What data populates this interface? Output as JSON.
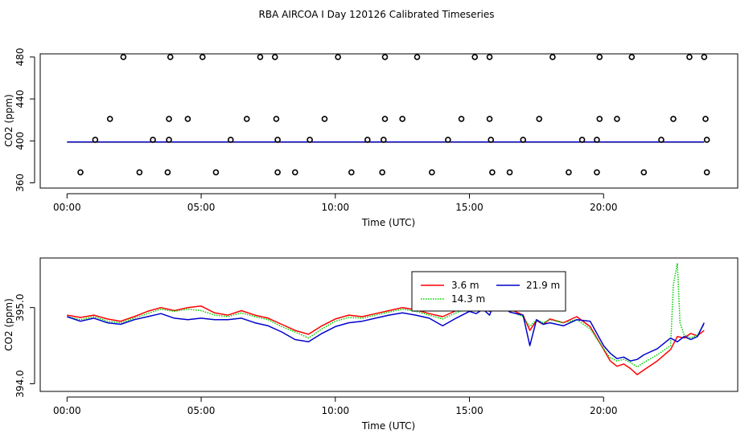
{
  "title": "RBA AIRCOA I  Day 120126  Calibrated Timeseries",
  "colors": {
    "red": "#ff0000",
    "green": "#00cc00",
    "blue": "#0000cc",
    "flag": "#000000"
  },
  "chart_data": [
    {
      "type": "scatter",
      "xlabel": "Time (UTC)",
      "ylabel": "CO2 (ppm)",
      "xlim": [
        -1,
        25
      ],
      "ylim": [
        355,
        483
      ],
      "x_tick_values": [
        0,
        5,
        10,
        15,
        20
      ],
      "x_tick_labels": [
        "00:00",
        "05:00",
        "10:00",
        "15:00",
        "20:00"
      ],
      "y_tick_values": [
        360,
        400,
        440,
        480
      ],
      "y_tick_labels": [
        "360",
        "400",
        "440",
        "480"
      ],
      "grid": false,
      "flag_points": {
        "x": [
          2.1,
          3.85,
          5.05,
          7.2,
          7.75,
          10.1,
          11.85,
          13.05,
          15.2,
          15.75,
          18.1,
          19.85,
          21.05,
          23.2,
          23.75,
          1.6,
          3.8,
          4.5,
          6.7,
          7.8,
          9.6,
          11.85,
          12.5,
          14.7,
          15.75,
          17.6,
          19.85,
          20.5,
          22.6,
          23.8,
          1.05,
          3.2,
          3.8,
          6.1,
          7.85,
          9.05,
          11.2,
          11.8,
          14.2,
          15.8,
          17.0,
          19.2,
          19.75,
          22.15,
          23.85,
          0.5,
          2.7,
          3.75,
          5.55,
          7.85,
          8.5,
          10.6,
          11.75,
          13.6,
          15.85,
          16.5,
          18.7,
          19.75,
          21.5,
          23.85
        ],
        "y": [
          480,
          480,
          480,
          480,
          480,
          480,
          480,
          480,
          480,
          480,
          480,
          480,
          480,
          480,
          480,
          421,
          421,
          421,
          421,
          421,
          421,
          421,
          421,
          421,
          421,
          421,
          421,
          421,
          421,
          421,
          401,
          401,
          401,
          401,
          401,
          401,
          401,
          401,
          401,
          401,
          401,
          401,
          401,
          401,
          401,
          370,
          370,
          370,
          370,
          370,
          370,
          370,
          370,
          370,
          370,
          370,
          370,
          370,
          370,
          370
        ]
      },
      "series": [
        {
          "values_constant": 398.8,
          "x_range": [
            0,
            23.75
          ]
        },
        {
          "values_constant": 398.9,
          "x_range": [
            0,
            23.75
          ]
        },
        {
          "values_constant": 399.0,
          "x_range": [
            0,
            23.75
          ]
        }
      ]
    },
    {
      "type": "line",
      "xlabel": "Time (UTC)",
      "ylabel": "CO2 (ppm)",
      "xlim": [
        -1,
        25
      ],
      "ylim": [
        393.9,
        395.65
      ],
      "x_tick_values": [
        0,
        5,
        10,
        15,
        20
      ],
      "x_tick_labels": [
        "00:00",
        "05:00",
        "10:00",
        "15:00",
        "20:00"
      ],
      "y_tick_values": [
        394.0,
        395.0
      ],
      "y_tick_labels": [
        "394.0",
        "395.0"
      ],
      "grid": false,
      "legend_position": "top-center",
      "series": [
        {
          "name": "3.6 m",
          "color": "#ff0000",
          "x": [
            0,
            0.5,
            1,
            1.5,
            2,
            2.5,
            3,
            3.5,
            4,
            4.5,
            5,
            5.5,
            6,
            6.5,
            7,
            7.5,
            8,
            8.5,
            9,
            9.5,
            10,
            10.5,
            11,
            11.5,
            12,
            12.5,
            13,
            13.5,
            14,
            14.5,
            15,
            15.25,
            15.5,
            15.75,
            16,
            16.5,
            17,
            17.25,
            17.5,
            17.75,
            18,
            18.5,
            19,
            19.5,
            20,
            20.25,
            20.5,
            20.75,
            21,
            21.25,
            21.5,
            22,
            22.5,
            22.75,
            23,
            23.25,
            23.5,
            23.75
          ],
          "values": [
            394.9,
            394.87,
            394.9,
            394.85,
            394.82,
            394.88,
            394.95,
            395.0,
            394.96,
            395.0,
            395.02,
            394.93,
            394.9,
            394.96,
            394.9,
            394.86,
            394.78,
            394.7,
            394.65,
            394.76,
            394.85,
            394.9,
            394.88,
            394.92,
            394.96,
            395.0,
            394.97,
            394.92,
            394.88,
            394.96,
            395.05,
            395.1,
            394.98,
            394.95,
            395.05,
            394.98,
            394.9,
            394.7,
            394.83,
            394.78,
            394.85,
            394.8,
            394.88,
            394.75,
            394.45,
            394.3,
            394.23,
            394.26,
            394.2,
            394.12,
            394.18,
            394.3,
            394.45,
            394.62,
            394.6,
            394.66,
            394.63,
            394.7
          ]
        },
        {
          "name": "14.3 m",
          "color": "#00cc00",
          "x": [
            0,
            0.5,
            1,
            1.5,
            2,
            2.5,
            3,
            3.5,
            4,
            4.5,
            5,
            5.5,
            6,
            6.5,
            7,
            7.5,
            8,
            8.5,
            9,
            9.5,
            10,
            10.5,
            11,
            11.5,
            12,
            12.5,
            13,
            13.5,
            14,
            14.5,
            15,
            15.25,
            15.5,
            15.75,
            16,
            16.5,
            17,
            17.25,
            17.5,
            17.75,
            18,
            18.5,
            19,
            19.5,
            20,
            20.25,
            20.5,
            20.75,
            21,
            21.25,
            21.5,
            22,
            22.5,
            22.6,
            22.75,
            22.85,
            23,
            23.25,
            23.5,
            23.75
          ],
          "values": [
            394.88,
            394.84,
            394.88,
            394.82,
            394.8,
            394.86,
            394.92,
            394.98,
            394.95,
            394.98,
            394.96,
            394.9,
            394.88,
            394.93,
            394.88,
            394.84,
            394.75,
            394.68,
            394.6,
            394.72,
            394.82,
            394.87,
            394.86,
            394.9,
            394.94,
            394.98,
            394.95,
            394.9,
            394.85,
            394.93,
            395.0,
            394.97,
            395.02,
            394.96,
            395.0,
            394.95,
            394.88,
            394.75,
            394.84,
            394.8,
            394.84,
            394.8,
            394.84,
            394.72,
            394.46,
            394.34,
            394.3,
            394.32,
            394.28,
            394.22,
            394.28,
            394.38,
            394.5,
            395.3,
            395.58,
            394.8,
            394.64,
            394.6,
            394.64,
            394.78
          ]
        },
        {
          "name": "21.9 m",
          "color": "#0000cc",
          "x": [
            0,
            0.5,
            1,
            1.5,
            2,
            2.5,
            3,
            3.5,
            4,
            4.5,
            5,
            5.5,
            6,
            6.5,
            7,
            7.5,
            8,
            8.5,
            9,
            9.5,
            10,
            10.5,
            11,
            11.5,
            12,
            12.5,
            13,
            13.5,
            14,
            14.5,
            15,
            15.25,
            15.5,
            15.75,
            16,
            16.5,
            17,
            17.25,
            17.5,
            17.75,
            18,
            18.5,
            19,
            19.5,
            20,
            20.25,
            20.5,
            20.75,
            21,
            21.25,
            21.5,
            22,
            22.5,
            22.75,
            23,
            23.25,
            23.5,
            23.75
          ],
          "values": [
            394.88,
            394.82,
            394.86,
            394.8,
            394.78,
            394.84,
            394.88,
            394.92,
            394.86,
            394.84,
            394.86,
            394.84,
            394.84,
            394.86,
            394.8,
            394.76,
            394.68,
            394.58,
            394.55,
            394.66,
            394.75,
            394.8,
            394.82,
            394.86,
            394.9,
            394.93,
            394.9,
            394.86,
            394.76,
            394.86,
            394.95,
            394.92,
            394.98,
            394.9,
            395.12,
            394.94,
            394.9,
            394.5,
            394.84,
            394.78,
            394.8,
            394.76,
            394.84,
            394.82,
            394.5,
            394.4,
            394.33,
            394.35,
            394.3,
            394.32,
            394.38,
            394.46,
            394.6,
            394.55,
            394.62,
            394.58,
            394.62,
            394.8
          ]
        }
      ]
    }
  ]
}
